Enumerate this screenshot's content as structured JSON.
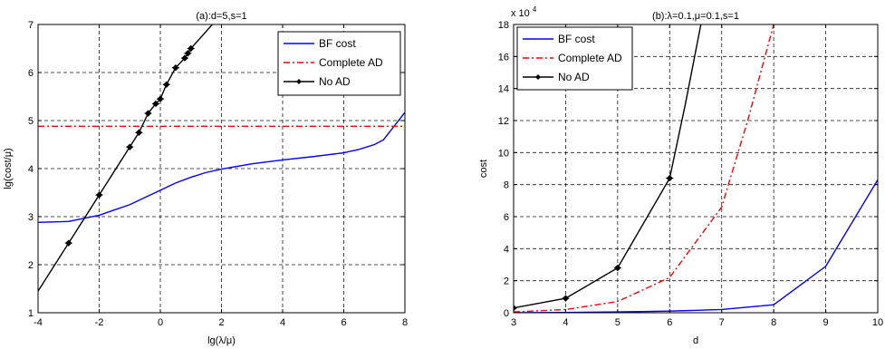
{
  "chart_data": [
    {
      "type": "line",
      "title": "(a):d=5,s=1",
      "xlabel": "lg(λ/μ)",
      "ylabel": "lg(cost/μ)",
      "xlim": [
        -4,
        8
      ],
      "ylim": [
        1,
        7
      ],
      "xticks": [
        -4,
        -2,
        0,
        2,
        4,
        6,
        8
      ],
      "yticks": [
        1,
        2,
        3,
        4,
        5,
        6,
        7
      ],
      "x_tick_labels": [
        "-4",
        "-2",
        "0",
        "2",
        "4",
        "6",
        "8"
      ],
      "y_tick_labels": [
        "1",
        "2",
        "3",
        "4",
        "5",
        "6",
        "7"
      ],
      "grid": true,
      "legend_position": "top-right",
      "series": [
        {
          "name": "BF cost",
          "color": "#0000ff",
          "dash": "solid",
          "marker": "none",
          "x": [
            -4,
            -3,
            -2,
            -1,
            0,
            0.5,
            1,
            1.5,
            2,
            3,
            4,
            5,
            6,
            6.5,
            7,
            7.3,
            8
          ],
          "y": [
            2.88,
            2.9,
            3.03,
            3.25,
            3.55,
            3.7,
            3.82,
            3.92,
            3.99,
            4.1,
            4.18,
            4.25,
            4.33,
            4.4,
            4.5,
            4.6,
            5.17
          ]
        },
        {
          "name": "Complete AD",
          "color": "#ff0000",
          "dash": "dashdot",
          "marker": "none",
          "x": [
            -4,
            8
          ],
          "y": [
            4.88,
            4.88
          ]
        },
        {
          "name": "No AD",
          "color": "#000000",
          "dash": "solid",
          "marker": "diamond",
          "x": [
            -4,
            -3,
            -2,
            -1,
            -0.7,
            -0.4,
            -0.15,
            0,
            0.2,
            0.5,
            0.8,
            0.9,
            1,
            1.7
          ],
          "y": [
            1.45,
            2.45,
            3.45,
            4.45,
            4.75,
            5.15,
            5.35,
            5.45,
            5.75,
            6.1,
            6.3,
            6.4,
            6.5,
            7.0
          ],
          "marker_points": [
            1,
            2,
            3,
            4,
            5,
            6,
            7,
            8,
            9,
            10,
            11,
            12
          ]
        }
      ]
    },
    {
      "type": "line",
      "title": "(b):λ=0.1,μ=0.1,s=1",
      "xlabel": "d",
      "ylabel": "cost",
      "y_scale_label": "x 10",
      "y_scale_exponent": "4",
      "xlim": [
        3,
        10
      ],
      "ylim": [
        0,
        18
      ],
      "xticks": [
        3,
        4,
        5,
        6,
        7,
        8,
        9,
        10
      ],
      "yticks": [
        0,
        2,
        4,
        6,
        8,
        10,
        12,
        14,
        16,
        18
      ],
      "x_tick_labels": [
        "3",
        "4",
        "5",
        "6",
        "7",
        "8",
        "9",
        "10"
      ],
      "y_tick_labels": [
        "0",
        "2",
        "4",
        "6",
        "8",
        "10",
        "12",
        "14",
        "16",
        "18"
      ],
      "grid": true,
      "legend_position": "top-left",
      "series": [
        {
          "name": "BF cost",
          "color": "#0000ff",
          "dash": "solid",
          "marker": "none",
          "x": [
            3,
            4,
            5,
            6,
            7,
            8,
            9,
            10
          ],
          "y": [
            0,
            0.02,
            0.05,
            0.1,
            0.2,
            0.5,
            2.9,
            8.3
          ]
        },
        {
          "name": "Complete AD",
          "color": "#ff0000",
          "dash": "dashdot",
          "marker": "none",
          "x": [
            3,
            4,
            5,
            6,
            7,
            7.5,
            8
          ],
          "y": [
            0.05,
            0.2,
            0.7,
            2.2,
            6.6,
            12.0,
            18.0
          ]
        },
        {
          "name": "No AD",
          "color": "#000000",
          "dash": "solid",
          "marker": "diamond",
          "x": [
            3,
            4,
            5,
            6,
            6.3,
            6.6
          ],
          "y": [
            0.3,
            0.9,
            2.8,
            8.4,
            13.0,
            18.0
          ],
          "marker_points": [
            0,
            1,
            2,
            3
          ]
        }
      ]
    }
  ]
}
